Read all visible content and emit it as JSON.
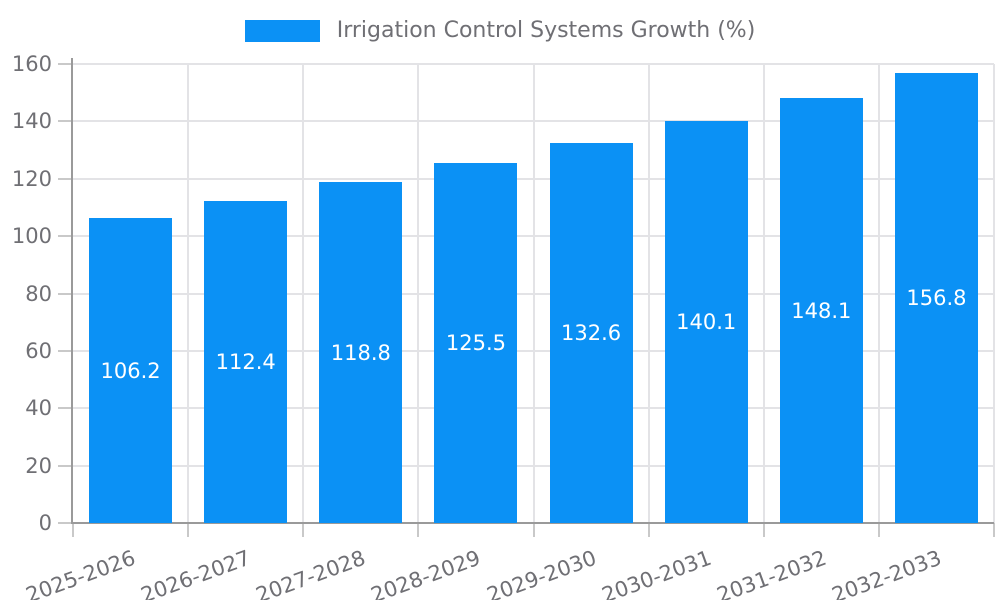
{
  "legend": {
    "label": "Irrigation Control Systems Growth (%)"
  },
  "chart_data": {
    "type": "bar",
    "title": "Irrigation Control Systems Growth (%)",
    "categories": [
      "2025-2026",
      "2026-2027",
      "2027-2028",
      "2028-2029",
      "2029-2030",
      "2030-2031",
      "2031-2032",
      "2032-2033"
    ],
    "series": [
      {
        "name": "Irrigation Control Systems Growth (%)",
        "values": [
          106.2,
          112.4,
          118.8,
          125.5,
          132.6,
          140.1,
          148.1,
          156.8
        ]
      }
    ],
    "value_labels": [
      "106.2",
      "112.4",
      "118.8",
      "125.5",
      "132.6",
      "140.1",
      "148.1",
      "156.8"
    ],
    "xlabel": "",
    "ylabel": "",
    "ylim": [
      0,
      160
    ],
    "ytick_step": 20,
    "ytick_labels": [
      "0",
      "20",
      "40",
      "60",
      "80",
      "100",
      "120",
      "140",
      "160"
    ],
    "grid": true,
    "legend_position": "top-center",
    "value_label_position": "inside-center",
    "x_label_rotation_deg": -20
  },
  "colors": {
    "bar": "#0b91f5",
    "axis_line": "#9a9a9a",
    "grid_line": "#e3e3e6",
    "tick": "#c9c9c9",
    "label_text": "#6f6f74",
    "value_text": "#ffffff",
    "background": "#ffffff"
  }
}
